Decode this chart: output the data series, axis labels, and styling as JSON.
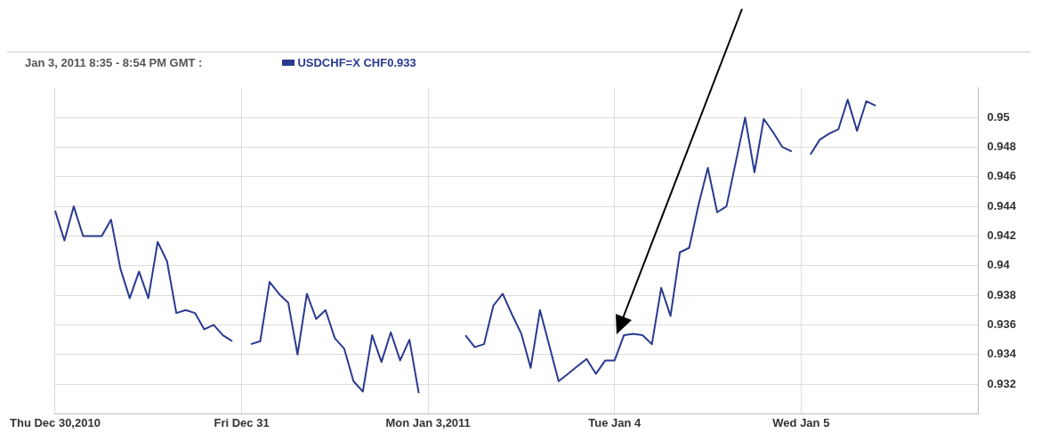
{
  "chart_data": {
    "type": "line",
    "title": "Jan 3, 2011 8:35 - 8:54 PM GMT :",
    "legend": "top left",
    "grid": true,
    "marker": "none",
    "line_style": "solid",
    "categories": [
      "Thu Dec 30,2010",
      null,
      null,
      null,
      null,
      null,
      null,
      null,
      null,
      null,
      null,
      null,
      null,
      null,
      null,
      null,
      null,
      null,
      null,
      null,
      "Fri Dec 31",
      null,
      null,
      null,
      null,
      null,
      null,
      null,
      null,
      null,
      null,
      null,
      null,
      null,
      null,
      null,
      null,
      null,
      null,
      null,
      "Mon Jan 3,2011",
      null,
      null,
      null,
      null,
      null,
      null,
      null,
      null,
      null,
      null,
      null,
      null,
      null,
      null,
      null,
      null,
      null,
      null,
      null,
      "Tue Jan 4",
      null,
      null,
      null,
      null,
      null,
      null,
      null,
      null,
      null,
      null,
      null,
      null,
      null,
      null,
      null,
      null,
      null,
      null,
      null,
      "Wed Jan 5",
      null,
      null,
      null,
      null,
      null,
      null,
      null,
      null,
      null,
      null,
      null,
      null,
      null,
      null,
      null,
      null,
      null,
      null,
      null
    ],
    "ylim": [
      0.93,
      0.952
    ],
    "yticks": [
      0.932,
      0.934,
      0.936,
      0.938,
      0.94,
      0.942,
      0.944,
      0.946,
      0.948,
      0.95
    ],
    "series": [
      {
        "name": "USDCHF=X CHF0.933",
        "color": "#2a3a8f",
        "values": [
          0.9437,
          0.9417,
          0.944,
          0.942,
          0.942,
          0.942,
          0.9431,
          0.9398,
          0.9378,
          0.9396,
          0.9378,
          0.9416,
          0.9403,
          0.9368,
          0.937,
          0.9368,
          0.9357,
          0.936,
          0.9353,
          0.9349,
          null,
          0.9347,
          0.9349,
          0.9389,
          0.9381,
          0.9375,
          0.934,
          0.9381,
          0.9364,
          0.937,
          0.9351,
          0.9344,
          0.9322,
          0.9315,
          0.9353,
          0.9335,
          0.9355,
          0.9336,
          0.935,
          0.9314,
          null,
          null,
          null,
          null,
          0.9353,
          0.9345,
          0.9347,
          0.9373,
          0.9381,
          0.9367,
          0.9354,
          0.9331,
          0.937,
          0.9346,
          0.9322,
          0.9327,
          0.9332,
          0.9337,
          0.9327,
          0.9336,
          0.9336,
          0.9353,
          0.9354,
          0.9353,
          0.9347,
          0.9385,
          0.9366,
          0.9409,
          0.9412,
          0.9441,
          0.9466,
          0.9436,
          0.944,
          0.947,
          0.95,
          0.9463,
          0.9499,
          0.949,
          0.948,
          0.9477,
          null,
          0.9475,
          0.9485,
          0.9489,
          0.9492,
          0.9512,
          0.9491,
          0.9511,
          0.9508,
          null,
          null,
          null,
          null,
          null,
          null,
          null,
          null,
          null,
          null,
          null
        ]
      }
    ]
  }
}
